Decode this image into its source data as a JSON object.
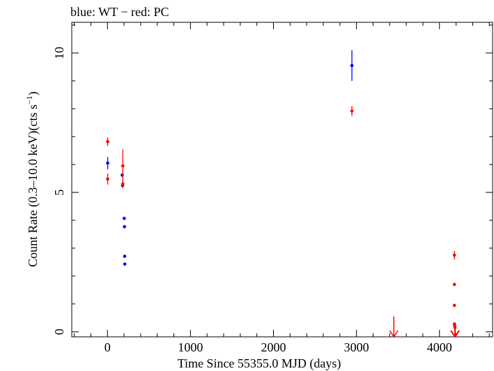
{
  "chart_data": {
    "type": "scatter",
    "title": "blue: WT − red: PC",
    "xlabel": "Time Since 55355.0 MJD (days)",
    "ylabel_main": "Count Rate (0.3–10.0 keV)(cts s",
    "ylabel_sup": "−1",
    "ylabel_end": ")",
    "xlim": [
      -430,
      4640
    ],
    "ylim": [
      -0.18,
      11.1
    ],
    "x_ticks": [
      0,
      1000,
      2000,
      3000,
      4000
    ],
    "x_tick_labels": [
      "0",
      "1000",
      "2000",
      "3000",
      "4000"
    ],
    "y_ticks": [
      0,
      5,
      10
    ],
    "y_tick_labels": [
      "0",
      "5",
      "10"
    ],
    "grid": false,
    "series": [
      {
        "label": "WT",
        "color": "#0000ff",
        "points": [
          {
            "x": 3,
            "y": 6.05,
            "err": 0.22
          },
          {
            "x": 178,
            "y": 5.62,
            "err": 0.06
          },
          {
            "x": 182,
            "y": 5.25,
            "err": 0.05
          },
          {
            "x": 202,
            "y": 4.07,
            "err": 0.04
          },
          {
            "x": 205,
            "y": 3.77,
            "err": 0.04
          },
          {
            "x": 207,
            "y": 2.71,
            "err": 0.04
          },
          {
            "x": 209,
            "y": 2.43,
            "err": 0.04
          },
          {
            "x": 2945,
            "y": 9.55,
            "err": 0.55
          }
        ]
      },
      {
        "label": "PC",
        "color": "#ff0000",
        "points": [
          {
            "x": 3,
            "y": 6.82,
            "err": 0.15
          },
          {
            "x": 3,
            "y": 5.48,
            "err": 0.2
          },
          {
            "x": 185,
            "y": 5.95,
            "err": 0.6
          },
          {
            "x": 185,
            "y": 5.3,
            "err": 0.15
          },
          {
            "x": 2945,
            "y": 7.92,
            "err": 0.18
          },
          {
            "x": 4180,
            "y": 2.75,
            "err": 0.15
          },
          {
            "x": 4180,
            "y": 1.7,
            "err": 0.06
          },
          {
            "x": 4180,
            "y": 0.95,
            "err": 0.05
          },
          {
            "x": 4180,
            "y": 0.28,
            "err": 0.04
          },
          {
            "x": 4183,
            "y": 0.22,
            "err": 0.03
          },
          {
            "x": 4187,
            "y": 0.15,
            "err": 0.03
          }
        ],
        "upper_limits": [
          {
            "x": 3450,
            "y": 0.55
          },
          {
            "x": 4185,
            "y": 0.33
          },
          {
            "x": 4190,
            "y": 0.33
          }
        ]
      }
    ]
  }
}
